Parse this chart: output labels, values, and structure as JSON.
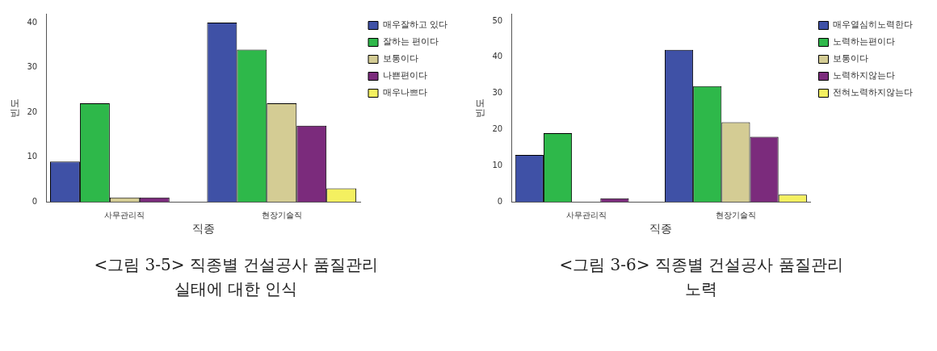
{
  "chart_data": [
    {
      "type": "bar",
      "title": "<그림 3-5> 직종별 건설공사 품질관리\n실태에 대한 인식",
      "xlabel": "직종",
      "ylabel": "빈도",
      "categories": [
        "사무관리직",
        "현장기술직"
      ],
      "ylim": [
        0,
        42
      ],
      "yticks": [
        0,
        10,
        20,
        30,
        40
      ],
      "grid": false,
      "legend": "right",
      "series": [
        {
          "name": "매우잘하고 있다",
          "color": "#3f51a6",
          "values": [
            9,
            40
          ]
        },
        {
          "name": "잘하는 편이다",
          "color": "#2eb84a",
          "values": [
            22,
            34
          ]
        },
        {
          "name": "보통이다",
          "color": "#d4cc94",
          "values": [
            1,
            22
          ]
        },
        {
          "name": "나쁜편이다",
          "color": "#7b2b7c",
          "values": [
            1,
            17
          ]
        },
        {
          "name": "매우나쁘다",
          "color": "#f4f060",
          "values": [
            0,
            3
          ]
        }
      ]
    },
    {
      "type": "bar",
      "title": "<그림 3-6> 직종별 건설공사 품질관리\n노력",
      "xlabel": "직종",
      "ylabel": "빈도",
      "categories": [
        "사무관리직",
        "현장기술직"
      ],
      "ylim": [
        0,
        52
      ],
      "yticks": [
        0,
        10,
        20,
        30,
        40,
        50
      ],
      "grid": false,
      "legend": "right",
      "series": [
        {
          "name": "매우열심히노력한다",
          "color": "#3f51a6",
          "values": [
            13,
            42
          ]
        },
        {
          "name": "노력하는편이다",
          "color": "#2eb84a",
          "values": [
            19,
            32
          ]
        },
        {
          "name": "보통이다",
          "color": "#d4cc94",
          "values": [
            0,
            22
          ]
        },
        {
          "name": "노력하지않는다",
          "color": "#7b2b7c",
          "values": [
            1,
            18
          ]
        },
        {
          "name": "전혀노력하지않는다",
          "color": "#f4f060",
          "values": [
            0,
            2
          ]
        }
      ]
    }
  ]
}
